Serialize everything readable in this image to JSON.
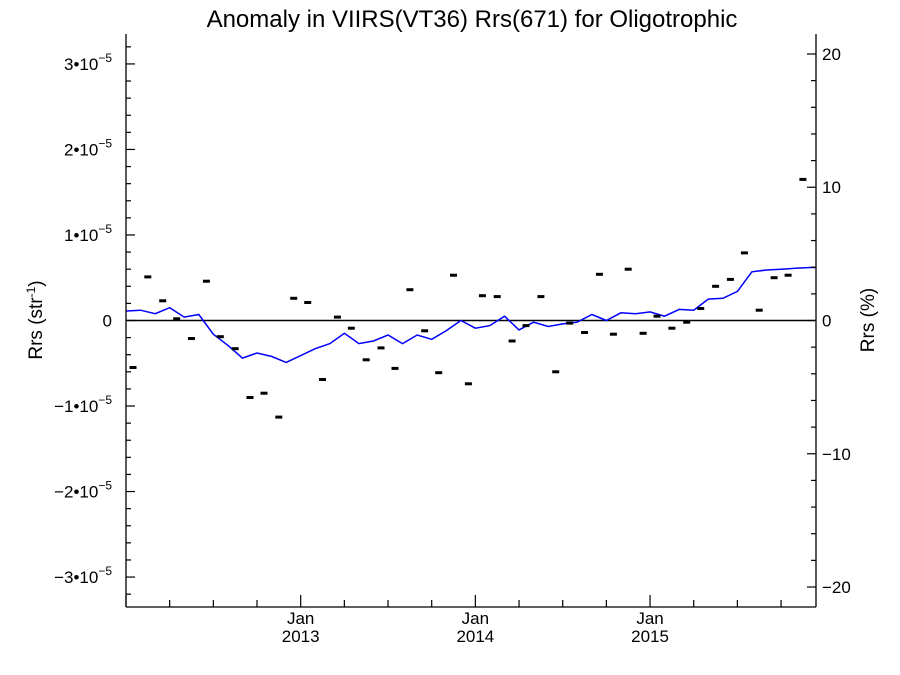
{
  "chart_data": {
    "type": "line",
    "title": "Anomaly in VIIRS(VT36) Rrs(671) for Oligotrophic",
    "ylabel": "Rrs (str",
    "ylabel_superscript": "-1",
    "ylabel_suffix": ")",
    "y2label": "Rrs (%)",
    "xlim": [
      2012.0,
      2015.95
    ],
    "ylim": [
      -3.35e-05,
      3.35e-05
    ],
    "y2lim": [
      -21.5,
      21.5
    ],
    "x_ticks": [
      {
        "month": "Jan",
        "year": "2013",
        "x": 2013.0
      },
      {
        "month": "Jan",
        "year": "2014",
        "x": 2014.0
      },
      {
        "month": "Jan",
        "year": "2015",
        "x": 2015.0
      }
    ],
    "y_tick_labels": [
      {
        "value": 3e-05,
        "mantissa": "3•10",
        "exponent": "−5"
      },
      {
        "value": 2e-05,
        "mantissa": "2•10",
        "exponent": "−5"
      },
      {
        "value": 1e-05,
        "mantissa": "1•10",
        "exponent": "−5"
      },
      {
        "value": 0,
        "mantissa": "0",
        "exponent": ""
      },
      {
        "value": -1e-05,
        "mantissa": "−1•10",
        "exponent": "−5"
      },
      {
        "value": -2e-05,
        "mantissa": "−2•10",
        "exponent": "−5"
      },
      {
        "value": -3e-05,
        "mantissa": "−3•10",
        "exponent": "−5"
      }
    ],
    "y2_tick_labels": [
      {
        "value": 20,
        "label": "20"
      },
      {
        "value": 10,
        "label": "10"
      },
      {
        "value": 0,
        "label": "0"
      },
      {
        "value": -10,
        "label": "−10"
      },
      {
        "value": -20,
        "label": "−20"
      }
    ],
    "zero_line": true,
    "colors": {
      "line": "#0000ff",
      "markers": "#000000",
      "axes": "#000000"
    },
    "series": [
      {
        "kind": "markers",
        "x": [
          2012.04,
          2012.125,
          2012.21,
          2012.29,
          2012.375,
          2012.46,
          2012.54,
          2012.625,
          2012.71,
          2012.79,
          2012.875,
          2012.96,
          2013.04,
          2013.125,
          2013.21,
          2013.29,
          2013.375,
          2013.46,
          2013.54,
          2013.625,
          2013.71,
          2013.79,
          2013.875,
          2013.96,
          2014.04,
          2014.125,
          2014.21,
          2014.29,
          2014.375,
          2014.46,
          2014.54,
          2014.625,
          2014.71,
          2014.79,
          2014.875,
          2014.96,
          2015.04,
          2015.125,
          2015.21,
          2015.29,
          2015.375,
          2015.46,
          2015.54,
          2015.625,
          2015.71,
          2015.79,
          2015.875
        ],
        "y": [
          -5.5e-06,
          5.1e-06,
          2.3e-06,
          2e-07,
          -2.1e-06,
          4.6e-06,
          -1.9e-06,
          -3.3e-06,
          -9e-06,
          -8.5e-06,
          -1.13e-05,
          2.6e-06,
          2.1e-06,
          -6.9e-06,
          4e-07,
          -9e-07,
          -4.6e-06,
          -3.2e-06,
          -5.6e-06,
          3.6e-06,
          -1.2e-06,
          -6.1e-06,
          5.3e-06,
          -7.4e-06,
          2.9e-06,
          2.8e-06,
          -2.4e-06,
          -6e-07,
          2.8e-06,
          -6e-06,
          -3e-07,
          -1.4e-06,
          5.4e-06,
          -1.6e-06,
          6e-06,
          -1.5e-06,
          5e-07,
          -9e-07,
          -2e-07,
          1.4e-06,
          4e-06,
          4.8e-06,
          7.9e-06,
          1.2e-06,
          5e-06,
          5.3e-06,
          1.65e-05
        ]
      },
      {
        "kind": "line",
        "x": [
          2012.0,
          2012.083,
          2012.167,
          2012.25,
          2012.333,
          2012.417,
          2012.5,
          2012.583,
          2012.667,
          2012.75,
          2012.833,
          2012.917,
          2013.0,
          2013.083,
          2013.167,
          2013.25,
          2013.333,
          2013.417,
          2013.5,
          2013.583,
          2013.667,
          2013.75,
          2013.833,
          2013.917,
          2014.0,
          2014.083,
          2014.167,
          2014.25,
          2014.333,
          2014.417,
          2014.5,
          2014.583,
          2014.667,
          2014.75,
          2014.833,
          2014.917,
          2015.0,
          2015.083,
          2015.167,
          2015.25,
          2015.333,
          2015.417,
          2015.5,
          2015.583,
          2015.667,
          2015.75,
          2015.833,
          2015.917,
          2015.95
        ],
        "y": [
          1.1e-06,
          1.2e-06,
          8e-07,
          1.5e-06,
          4e-07,
          7e-07,
          -1.6e-06,
          -2.9e-06,
          -4.4e-06,
          -3.8e-06,
          -4.2e-06,
          -4.9e-06,
          -4.1e-06,
          -3.3e-06,
          -2.7e-06,
          -1.5e-06,
          -2.7e-06,
          -2.4e-06,
          -1.7e-06,
          -2.7e-06,
          -1.7e-06,
          -2.2e-06,
          -1.2e-06,
          0,
          -9e-07,
          -6e-07,
          5e-07,
          -1.1e-06,
          -2e-07,
          -7e-07,
          -4e-07,
          -2e-07,
          7e-07,
          0,
          9e-07,
          8e-07,
          1e-06,
          5e-07,
          1.3e-06,
          1.2e-06,
          2.5e-06,
          2.6e-06,
          3.4e-06,
          5.7e-06,
          5.9e-06,
          6e-06,
          6.1e-06,
          6.2e-06,
          6.2e-06
        ]
      }
    ]
  }
}
